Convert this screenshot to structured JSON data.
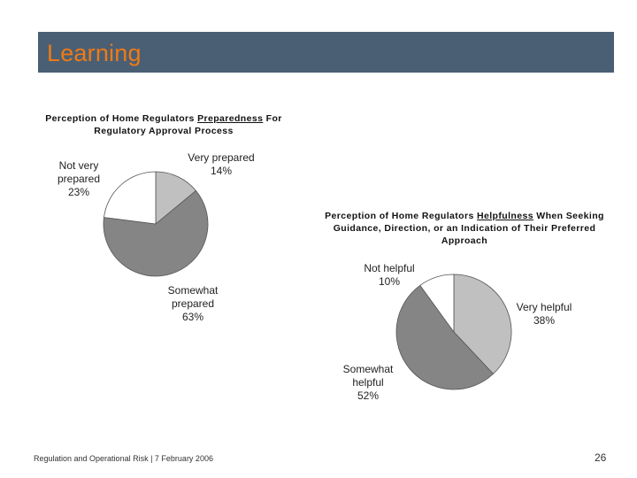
{
  "slide": {
    "title": "Learning",
    "footer": "Regulation and Operational Risk | 7 February 2006",
    "page_number": "26",
    "colors": {
      "title_bar": "#4a5f74",
      "title_text": "#f07a14"
    }
  },
  "chart_data": [
    {
      "type": "pie",
      "title_parts": [
        "Perception of Home Regulators ",
        "Preparedness",
        " For Regulatory Approval Process"
      ],
      "slices": [
        {
          "label_lines": [
            "Very prepared",
            "14%"
          ],
          "name": "Very prepared",
          "value": 14,
          "color": "#c0c0c0"
        },
        {
          "label_lines": [
            "Somewhat",
            "prepared",
            "63%"
          ],
          "name": "Somewhat prepared",
          "value": 63,
          "color": "#858585"
        },
        {
          "label_lines": [
            "Not very",
            "prepared",
            "23%"
          ],
          "name": "Not very prepared",
          "value": 23,
          "color": "#ffffff"
        }
      ]
    },
    {
      "type": "pie",
      "title_parts": [
        "Perception of Home Regulators ",
        "Helpfulness",
        " When Seeking Guidance, Direction, or an Indication of Their Preferred Approach"
      ],
      "slices": [
        {
          "label_lines": [
            "Very helpful",
            "38%"
          ],
          "name": "Very helpful",
          "value": 38,
          "color": "#c0c0c0"
        },
        {
          "label_lines": [
            "Somewhat",
            "helpful",
            "52%"
          ],
          "name": "Somewhat helpful",
          "value": 52,
          "color": "#858585"
        },
        {
          "label_lines": [
            "Not helpful",
            "10%"
          ],
          "name": "Not helpful",
          "value": 10,
          "color": "#ffffff"
        }
      ]
    }
  ]
}
